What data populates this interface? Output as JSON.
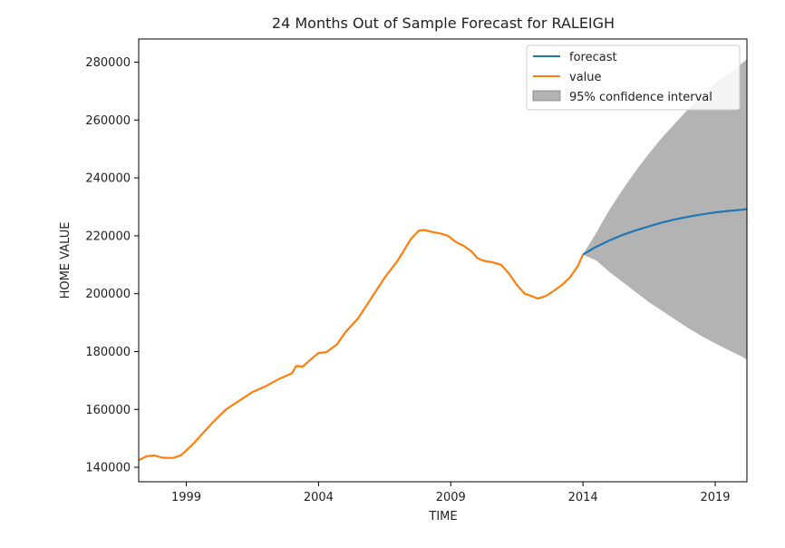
{
  "chart_data": {
    "type": "line",
    "title": "24 Months Out of Sample Forecast for RALEIGH",
    "xlabel": "TIME",
    "ylabel": "HOME VALUE",
    "xlim": [
      1997.2,
      2020.2
    ],
    "ylim": [
      135000,
      288000
    ],
    "x_ticks": [
      1999,
      2004,
      2009,
      2014,
      2019
    ],
    "x_tick_labels": [
      "1999",
      "2004",
      "2009",
      "2014",
      "2019"
    ],
    "y_ticks": [
      140000,
      160000,
      180000,
      200000,
      220000,
      240000,
      260000,
      280000
    ],
    "y_tick_labels": [
      "140000",
      "160000",
      "180000",
      "200000",
      "220000",
      "240000",
      "260000",
      "280000"
    ],
    "grid": false,
    "legend_position": "top-right",
    "series": [
      {
        "name": "forecast",
        "color": "#1f77b4",
        "x": [
          2014.0,
          2014.5,
          2015.0,
          2015.5,
          2016.0,
          2016.5,
          2017.0,
          2017.5,
          2018.0,
          2018.5,
          2019.0,
          2019.5,
          2020.0,
          2020.2
        ],
        "y": [
          213500,
          216200,
          218400,
          220300,
          221900,
          223300,
          224600,
          225700,
          226600,
          227400,
          228100,
          228600,
          229000,
          229200
        ]
      },
      {
        "name": "value",
        "color": "#ff7f0e",
        "x": [
          1997.2,
          1997.5,
          1997.8,
          1998.1,
          1998.5,
          1998.8,
          1999.2,
          1999.6,
          2000.0,
          2000.5,
          2001.0,
          2001.5,
          2002.0,
          2002.5,
          2003.0,
          2003.15,
          2003.4,
          2003.8,
          2004.0,
          2004.3,
          2004.7,
          2005.0,
          2005.5,
          2006.0,
          2006.5,
          2007.0,
          2007.5,
          2007.8,
          2008.0,
          2008.3,
          2008.6,
          2008.9,
          2009.2,
          2009.5,
          2009.8,
          2010.0,
          2010.2,
          2010.35,
          2010.6,
          2010.9,
          2011.2,
          2011.5,
          2011.8,
          2012.1,
          2012.3,
          2012.6,
          2012.9,
          2013.2,
          2013.5,
          2013.8,
          2014.0
        ],
        "y": [
          142500,
          143800,
          144100,
          143300,
          143200,
          144200,
          147500,
          151500,
          155500,
          160000,
          163000,
          166000,
          168000,
          170500,
          172500,
          175000,
          174800,
          178000,
          179500,
          179800,
          182500,
          186500,
          191500,
          198500,
          205500,
          211500,
          219000,
          221800,
          222000,
          221300,
          220800,
          220000,
          217800,
          216500,
          214500,
          212300,
          211500,
          211200,
          210800,
          210000,
          207000,
          203000,
          200000,
          199000,
          198300,
          199200,
          201000,
          203000,
          205500,
          209500,
          213500
        ]
      }
    ],
    "confidence_interval": {
      "name": "95% confidence interval",
      "color": "#808080",
      "x": [
        2014.0,
        2014.5,
        2015.0,
        2015.5,
        2016.0,
        2016.5,
        2017.0,
        2017.5,
        2018.0,
        2018.5,
        2019.0,
        2019.5,
        2020.0,
        2020.2
      ],
      "upper": [
        213500,
        221000,
        229000,
        236000,
        242500,
        248500,
        254000,
        259000,
        264000,
        268500,
        272500,
        276000,
        279500,
        281000
      ],
      "lower": [
        213500,
        211500,
        207500,
        204000,
        200500,
        197000,
        194000,
        191000,
        188000,
        185300,
        182800,
        180500,
        178300,
        177200
      ]
    }
  }
}
